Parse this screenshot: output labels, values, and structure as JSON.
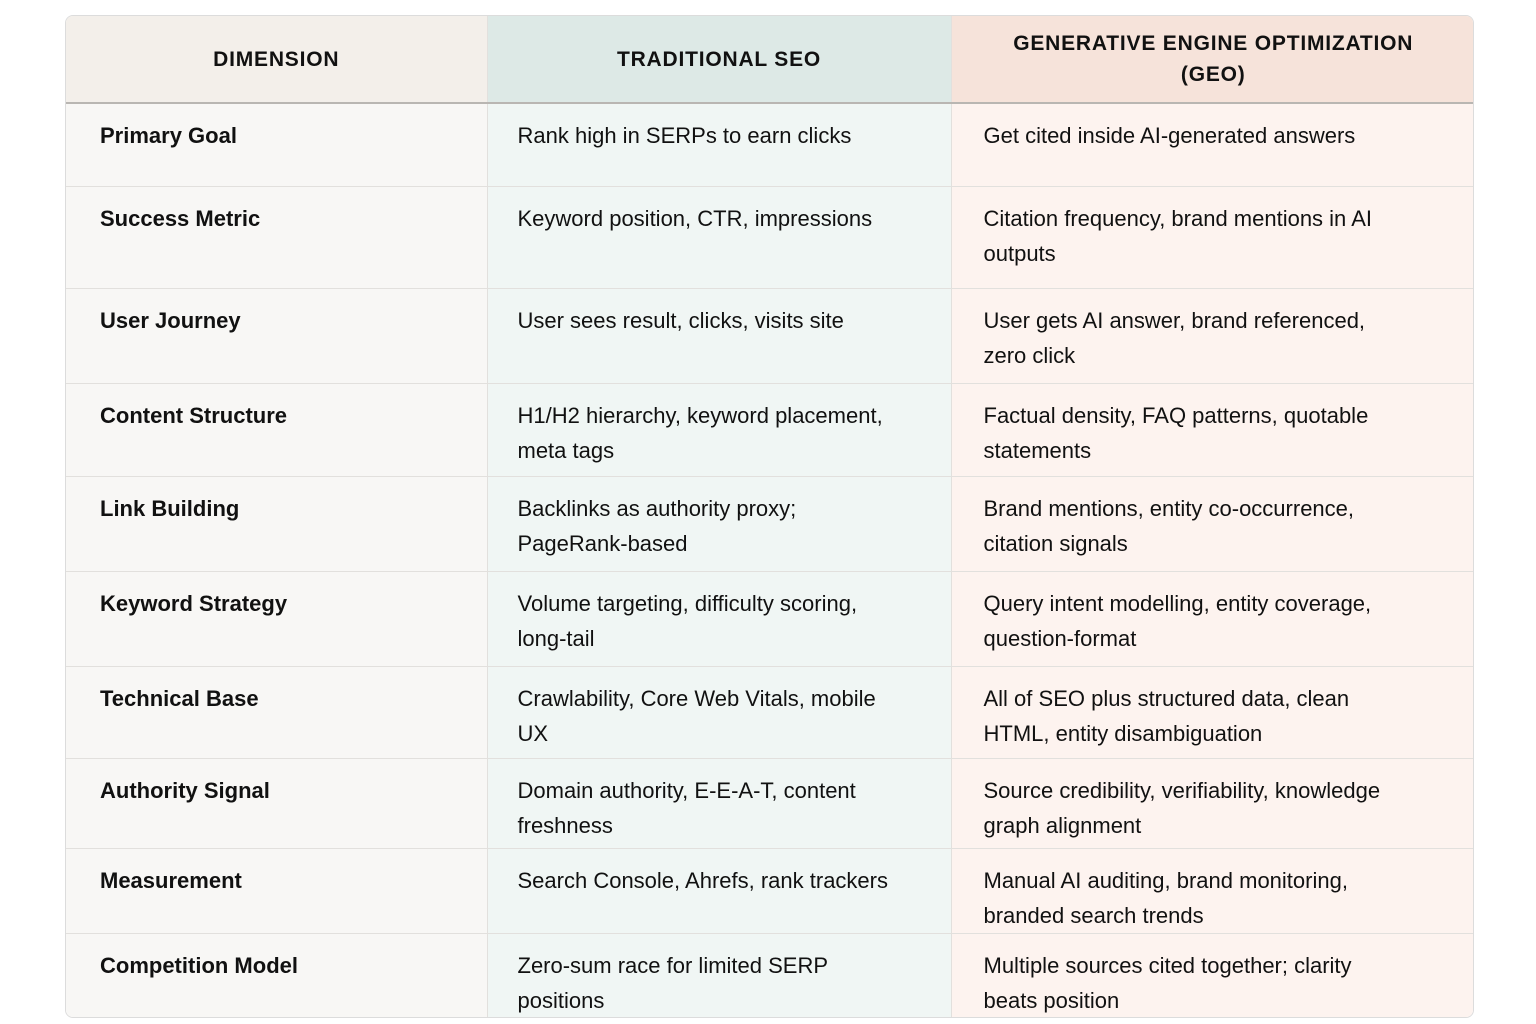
{
  "header": {
    "columns": [
      "DIMENSION",
      "TRADITIONAL SEO",
      "GENERATIVE ENGINE OPTIMIZATION (GEO)"
    ]
  },
  "table": {
    "rows": [
      [
        "Primary Goal",
        "Rank high in SERPs to earn clicks",
        "Get cited inside AI-generated answers"
      ],
      [
        "Success Metric",
        "Keyword position, CTR, impressions",
        "Citation frequency, brand mentions in AI outputs"
      ],
      [
        "User Journey",
        "User sees result, clicks, visits site",
        "User gets AI answer, brand referenced, zero click"
      ],
      [
        "Content Structure",
        "H1/H2 hierarchy, keyword placement, meta tags",
        "Factual density, FAQ patterns, quotable statements"
      ],
      [
        "Link Building",
        "Backlinks as authority proxy; PageRank-based",
        "Brand mentions, entity co-occurrence, citation signals"
      ],
      [
        "Keyword Strategy",
        "Volume targeting, difficulty scoring, long-tail",
        "Query intent modelling, entity coverage, question-format"
      ],
      [
        "Technical Base",
        "Crawlability, Core Web Vitals, mobile UX",
        "All of SEO plus structured data, clean HTML, entity disambiguation"
      ],
      [
        "Authority Signal",
        "Domain authority, E-E-A-T, content freshness",
        "Source credibility, verifiability, knowledge graph alignment"
      ],
      [
        "Measurement",
        "Search Console, Ahrefs, rank trackers",
        "Manual AI auditing, brand monitoring, branded search trends"
      ],
      [
        "Competition Model",
        "Zero-sum race for limited SERP positions",
        "Multiple sources cited together; clarity beats position"
      ]
    ]
  }
}
